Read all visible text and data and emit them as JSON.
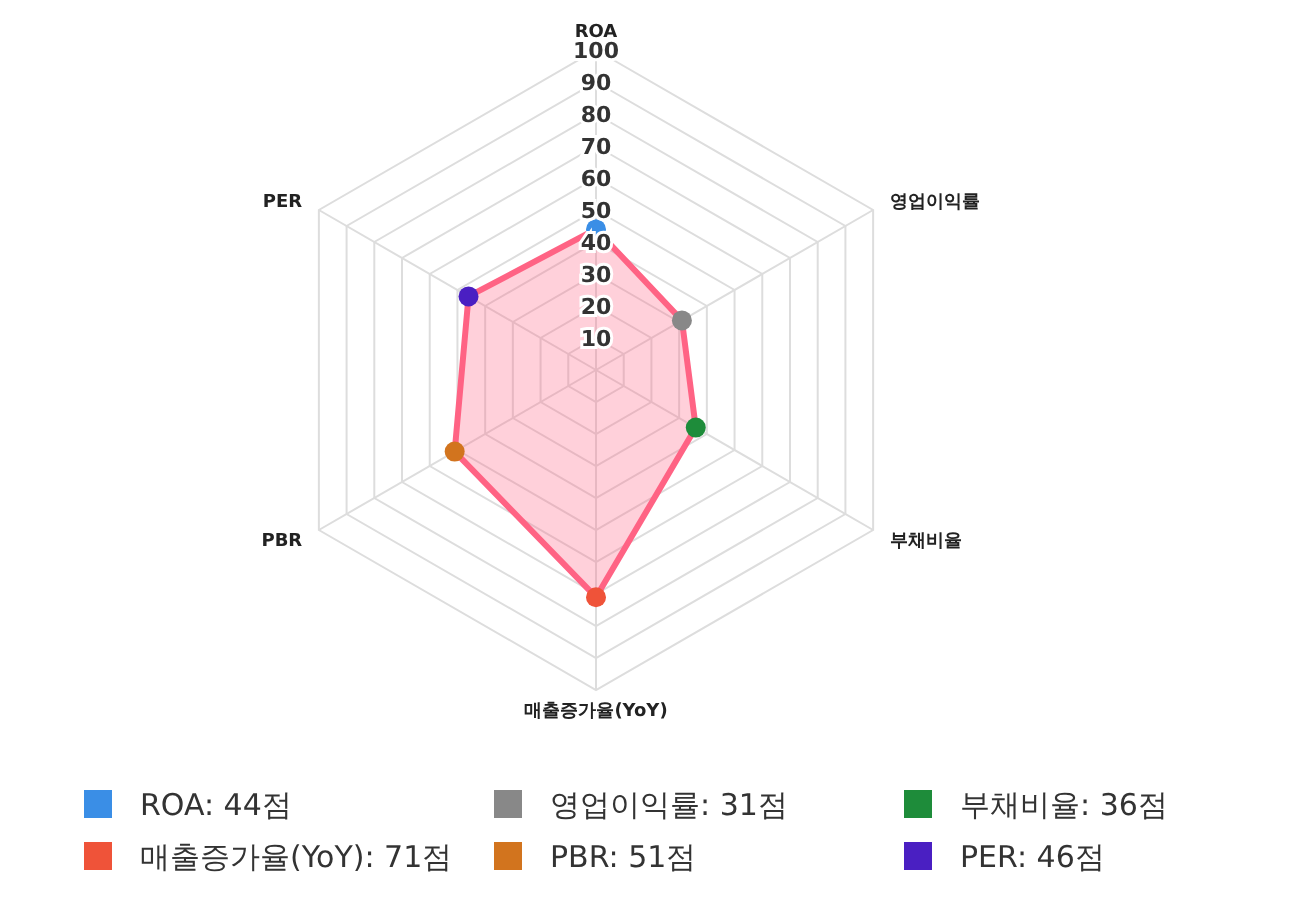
{
  "chart_data": {
    "type": "radar",
    "categories": [
      "ROA",
      "영업이익률",
      "부채비율",
      "매출증가율(YoY)",
      "PBR",
      "PER"
    ],
    "series": [
      {
        "color": "#ff6384",
        "values": [
          44,
          31,
          36,
          71,
          51,
          46
        ],
        "colors": [
          "#3a8ee6",
          "#888888",
          "#1e8c3a",
          "#ef5339",
          "#d2741e",
          "#4a1fc2"
        ]
      }
    ],
    "annotations": [
      "ROA: 44점",
      "영업이익률: 31점",
      "부채비율: 36점",
      "매출증가율(YoY): 71점",
      "PBR: 51점",
      "PER: 46점"
    ],
    "ylim": [
      0,
      100
    ],
    "yticks": [
      10,
      20,
      30,
      40,
      50,
      60,
      70,
      80,
      90,
      100
    ],
    "grid": true,
    "marker": "circle"
  }
}
